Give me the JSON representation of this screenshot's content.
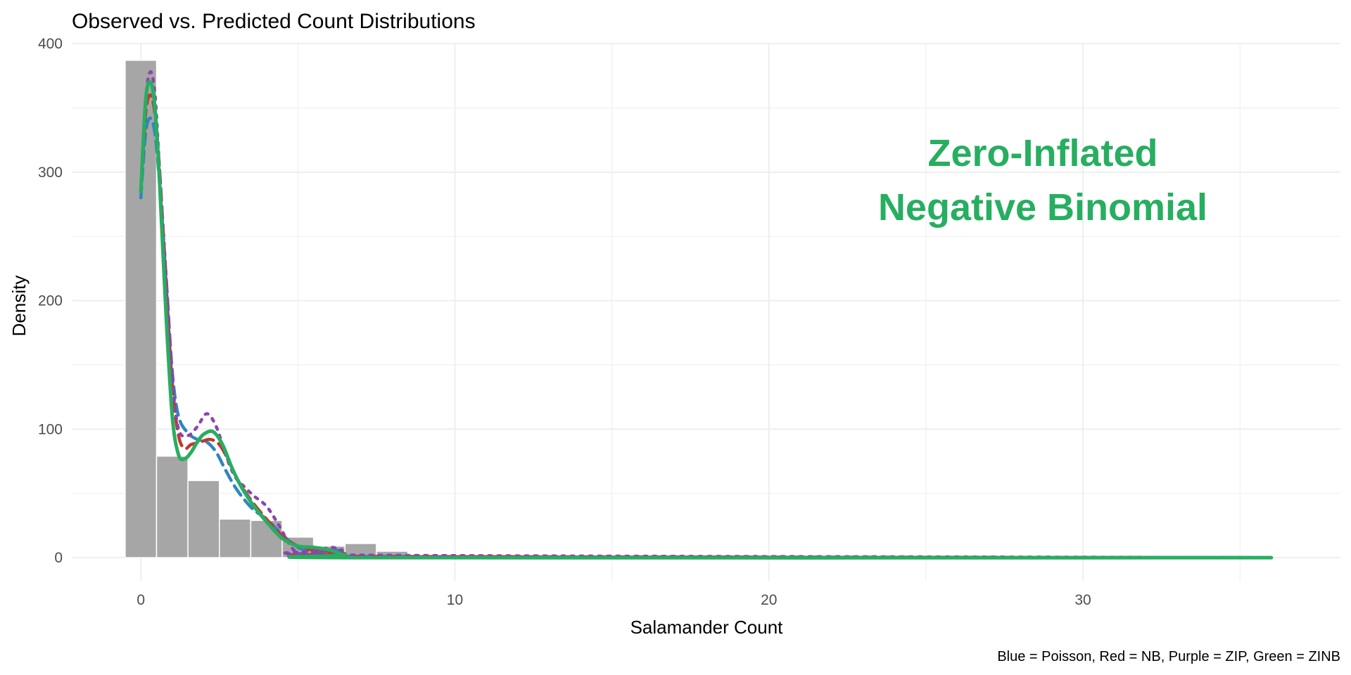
{
  "chart_data": {
    "type": "bar",
    "title": "Observed vs. Predicted Count Distributions",
    "xlabel": "Salamander Count",
    "ylabel": "Density",
    "caption": "Blue = Poisson, Red = NB, Purple = ZIP, Green = ZINB",
    "annotation": [
      "Zero-Inflated",
      "Negative Binomial"
    ],
    "annotation_color": "#27ae60",
    "xlim": [
      -2.2,
      38.2
    ],
    "ylim": [
      -18,
      400
    ],
    "xticks": [
      0,
      10,
      20,
      30
    ],
    "yticks": [
      0,
      100,
      200,
      300,
      400
    ],
    "grid": true,
    "bar_color": "#a6a6a6",
    "bars": {
      "x": [
        0,
        1,
        2,
        3,
        4,
        5,
        6,
        7,
        8,
        9,
        10,
        11,
        12,
        13,
        14,
        15,
        16,
        17,
        18,
        19,
        20,
        21,
        22,
        23,
        24,
        25,
        26,
        27,
        28,
        29,
        30,
        31,
        32,
        33,
        34,
        35,
        36
      ],
      "values": [
        387,
        79,
        60,
        30,
        29,
        16,
        9,
        11,
        5,
        2,
        0,
        2,
        0,
        0,
        0,
        0,
        0,
        0,
        0,
        0,
        0,
        0,
        0,
        0,
        0,
        0,
        0,
        0,
        0,
        0,
        0,
        0,
        0,
        0,
        0,
        0,
        0
      ]
    },
    "series": [
      {
        "name": "Poisson",
        "color": "#2e86c1",
        "style": "dashed",
        "x": [
          0,
          0.15,
          0.3,
          0.45,
          0.6,
          0.8,
          1.0,
          1.2,
          1.5,
          1.8,
          2.1,
          2.4,
          2.7,
          3.0,
          3.3,
          3.6,
          4.0,
          4.5,
          5.0,
          5.5,
          6.0,
          6.5,
          7.0,
          36
        ],
        "values": [
          280,
          330,
          342,
          330,
          290,
          220,
          145,
          110,
          97,
          92,
          90,
          82,
          68,
          55,
          45,
          37,
          30,
          18,
          8,
          5,
          6,
          5,
          1,
          0
        ]
      },
      {
        "name": "NB",
        "color": "#c0392b",
        "style": "dashed",
        "x": [
          0,
          0.15,
          0.3,
          0.45,
          0.6,
          0.8,
          1.0,
          1.2,
          1.4,
          1.6,
          1.9,
          2.2,
          2.5,
          2.8,
          3.1,
          3.5,
          4.0,
          4.5,
          5.0,
          5.5,
          6.0,
          6.5,
          7.0,
          36
        ],
        "values": [
          285,
          345,
          360,
          345,
          300,
          215,
          135,
          95,
          85,
          88,
          90,
          92,
          88,
          75,
          60,
          45,
          30,
          17,
          9,
          6,
          5,
          3,
          1,
          0
        ]
      },
      {
        "name": "ZIP",
        "color": "#8e44ad",
        "style": "dotted",
        "x": [
          0,
          0.15,
          0.3,
          0.45,
          0.6,
          0.8,
          1.0,
          1.2,
          1.5,
          1.8,
          2.1,
          2.4,
          2.7,
          3.0,
          3.3,
          3.6,
          4.0,
          4.4,
          4.8,
          5.2,
          5.6,
          6.0,
          6.4,
          6.8,
          36
        ],
        "values": [
          285,
          355,
          378,
          360,
          300,
          220,
          140,
          100,
          95,
          102,
          112,
          102,
          80,
          63,
          55,
          48,
          40,
          25,
          8,
          0,
          4,
          8,
          6,
          2,
          0
        ]
      },
      {
        "name": "ZINB",
        "color": "#27ae60",
        "style": "solid",
        "x": [
          0,
          0.15,
          0.3,
          0.45,
          0.6,
          0.8,
          1.0,
          1.2,
          1.4,
          1.6,
          1.8,
          2.0,
          2.3,
          2.6,
          2.9,
          3.2,
          3.6,
          4.0,
          4.5,
          5.0,
          5.5,
          6.0,
          6.5,
          7.0,
          36
        ],
        "values": [
          285,
          355,
          370,
          350,
          290,
          190,
          110,
          80,
          77,
          82,
          90,
          96,
          98,
          88,
          70,
          55,
          40,
          28,
          15,
          9,
          8,
          6,
          2,
          0,
          0
        ]
      }
    ]
  }
}
